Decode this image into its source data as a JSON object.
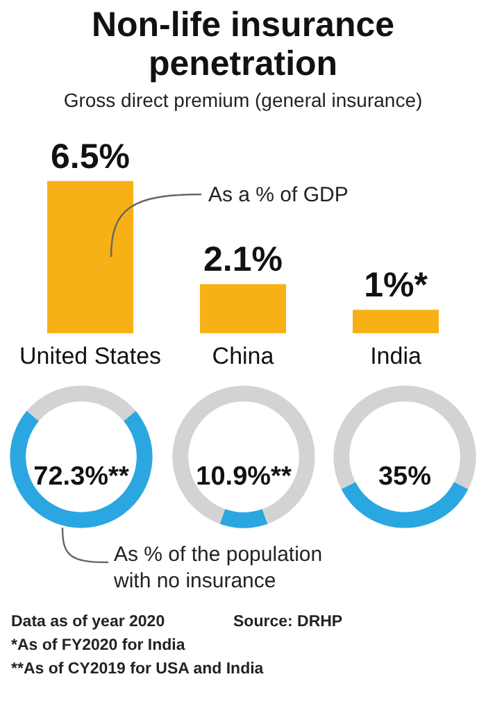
{
  "chart_data": [
    {
      "type": "bar",
      "title": "Non-life insurance penetration",
      "subtitle": "Gross direct premium (general insurance)",
      "categories": [
        "United States",
        "China",
        "India"
      ],
      "values": [
        6.5,
        2.1,
        1
      ],
      "color": "#f7b116",
      "value_labels": [
        "6.5%",
        "2.1%",
        "1%*"
      ],
      "annotations": [
        "As a % of GDP",
        "Data as of year 2020",
        "Source: DRHP",
        "*As of FY2020 for India",
        "**As of CY2019 for USA and India"
      ]
    },
    {
      "type": "donut",
      "categories": [
        null,
        null
      ],
      "values": [
        72.3,
        27.7
      ],
      "colors": [
        "#2aa7e0",
        "#d3d3d3"
      ],
      "value_labels": [
        "72.3%**",
        null
      ],
      "annotations": [
        "As % of the population with no insurance"
      ]
    },
    {
      "type": "donut",
      "categories": [
        null,
        null
      ],
      "values": [
        10.9,
        89.1
      ],
      "colors": [
        "#2aa7e0",
        "#d3d3d3"
      ],
      "value_labels": [
        "10.9%**",
        null
      ]
    },
    {
      "type": "donut",
      "categories": [
        null,
        null
      ],
      "values": [
        35,
        65
      ],
      "colors": [
        "#2aa7e0",
        "#d3d3d3"
      ],
      "value_labels": [
        "35%",
        null
      ]
    }
  ]
}
